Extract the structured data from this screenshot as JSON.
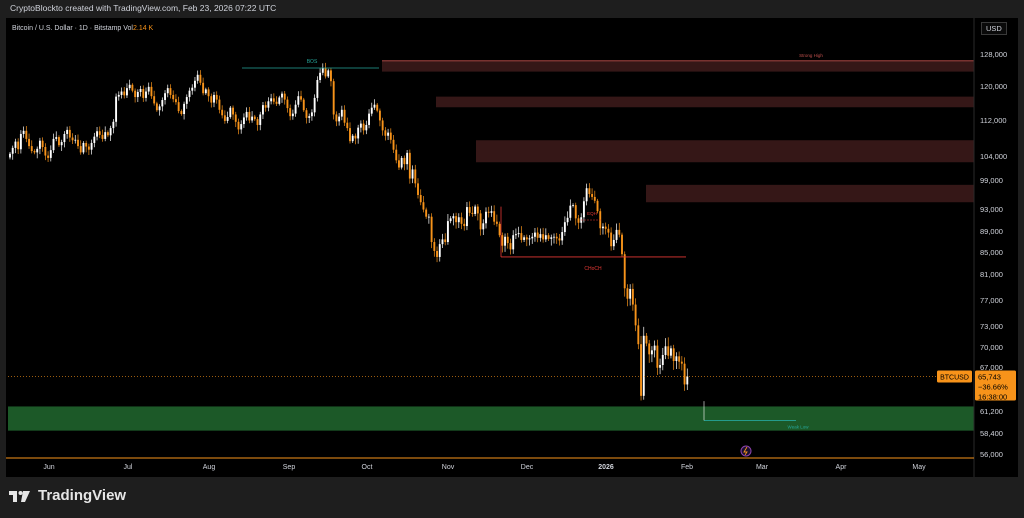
{
  "header": {
    "text": "CryptoBlockto created with TradingView.com, Feb 23, 2026 07:22 UTC"
  },
  "legend": {
    "symbol_text": "Bitcoin / U.S. Dollar · 1D · Bitstamp  Vol",
    "volume": "2.14 K"
  },
  "price_scale": {
    "currency": "USD"
  },
  "footer": {
    "brand": "TradingView"
  },
  "colors": {
    "up": "#ffffff",
    "down": "#f7931a",
    "supply_zone": "#3b1a1a",
    "demand_zone": "#1e5e2a",
    "bos_line": "#26a69a",
    "choch_line": "#e53935",
    "axis_line": "#f7931a"
  },
  "chart_data": {
    "type": "candlestick",
    "symbol": "BTCUSD",
    "interval": "1D",
    "exchange": "Bitstamp",
    "x_axis": {
      "labels": [
        "Jun",
        "Jul",
        "Aug",
        "Sep",
        "Oct",
        "Nov",
        "Dec",
        "2026",
        "Feb",
        "Mar",
        "Apr",
        "May"
      ]
    },
    "y_axis": {
      "ticks": [
        "128,000",
        "120,000",
        "112,000",
        "104,000",
        "99,000",
        "93,000",
        "89,000",
        "85,000",
        "81,000",
        "77,000",
        "73,000",
        "70,000",
        "67,000",
        "61,200",
        "58,400",
        "56,000"
      ],
      "tick_values": [
        128000,
        120000,
        112000,
        104000,
        99000,
        93000,
        89000,
        85000,
        81000,
        77000,
        73000,
        70000,
        67000,
        61200,
        58400,
        56000
      ]
    },
    "last_price": {
      "label": "BTCUSD",
      "value": "65,743",
      "change": "−36.66%",
      "countdown": "16:38:00",
      "price": 65743
    },
    "closes": [
      104500,
      105800,
      107200,
      105500,
      108900,
      109600,
      107800,
      106200,
      105100,
      104800,
      105600,
      107400,
      106000,
      104100,
      103600,
      105300,
      107800,
      108200,
      106400,
      107100,
      108900,
      109800,
      108100,
      107500,
      107600,
      106200,
      104800,
      106900,
      106100,
      105400,
      106900,
      108300,
      109500,
      108700,
      107800,
      109300,
      108600,
      110200,
      111600,
      117500,
      117900,
      118700,
      117800,
      119500,
      120300,
      118900,
      117400,
      118600,
      119300,
      117200,
      118700,
      119800,
      117600,
      115900,
      114300,
      115200,
      116700,
      118300,
      119500,
      117900,
      116900,
      116200,
      114100,
      113400,
      115800,
      117400,
      118900,
      119600,
      121300,
      122800,
      120800,
      118300,
      119200,
      117600,
      116100,
      117900,
      116800,
      114400,
      113100,
      111800,
      112700,
      114900,
      113300,
      111600,
      109900,
      111100,
      112600,
      113900,
      111900,
      112800,
      112200,
      110900,
      113300,
      115500,
      114900,
      116400,
      117100,
      116300,
      115800,
      117300,
      118200,
      116800,
      114800,
      112900,
      113500,
      115600,
      117600,
      116800,
      114300,
      112500,
      112900,
      113800,
      117200,
      121500,
      123300,
      124500,
      122400,
      123900,
      121200,
      113300,
      111700,
      112800,
      114400,
      111400,
      110200,
      107300,
      108500,
      107900,
      110300,
      111200,
      109700,
      110900,
      113500,
      114900,
      115600,
      114200,
      111900,
      109700,
      108500,
      109200,
      107600,
      105400,
      103100,
      101600,
      103600,
      102300,
      104700,
      99300,
      101200,
      98300,
      95900,
      94400,
      92900,
      91600,
      91600,
      86900,
      85200,
      84100,
      86500,
      87400,
      86900,
      90800,
      91300,
      91700,
      90600,
      91500,
      90300,
      89900,
      93400,
      92300,
      92100,
      93500,
      92200,
      89300,
      90400,
      92500,
      92300,
      92600,
      90700,
      90300,
      88200,
      86200,
      87900,
      86700,
      85500,
      88200,
      88400,
      88600,
      87300,
      87800,
      87400,
      87600,
      87900,
      88700,
      87700,
      88400,
      87400,
      88200,
      87500,
      87800,
      87900,
      87600,
      87200,
      88800,
      90600,
      91400,
      93700,
      93800,
      91300,
      90500,
      91500,
      94600,
      97300,
      96100,
      95500,
      94700,
      92600,
      89500,
      89800,
      89400,
      88700,
      86100,
      87300,
      89200,
      88300,
      84600,
      78800,
      77200,
      78700,
      76300,
      73100,
      70400,
      63200,
      71600,
      70500,
      68900,
      69500,
      70200,
      66900,
      67300,
      68800,
      70100,
      68700,
      69800,
      67900,
      68600,
      67800,
      67500,
      64700,
      65743
    ],
    "annotations": {
      "bos": {
        "label": "BOS",
        "price": 124500
      },
      "choch": {
        "label": "CHoCH",
        "price": 84100
      },
      "eqh": {
        "label": "EQH",
        "price": 91000
      },
      "strong_high": {
        "label": "Strong High",
        "price": 126300
      },
      "weak_low": {
        "label": "Weak Low",
        "price": 60000
      }
    },
    "zones": [
      {
        "kind": "supply",
        "top": 126300,
        "bottom": 123600
      },
      {
        "kind": "supply",
        "top": 117500,
        "bottom": 115000
      },
      {
        "kind": "supply",
        "top": 107500,
        "bottom": 102700
      },
      {
        "kind": "supply",
        "top": 98000,
        "bottom": 94400
      },
      {
        "kind": "demand",
        "top": 61800,
        "bottom": 58700
      }
    ],
    "grid": false
  }
}
